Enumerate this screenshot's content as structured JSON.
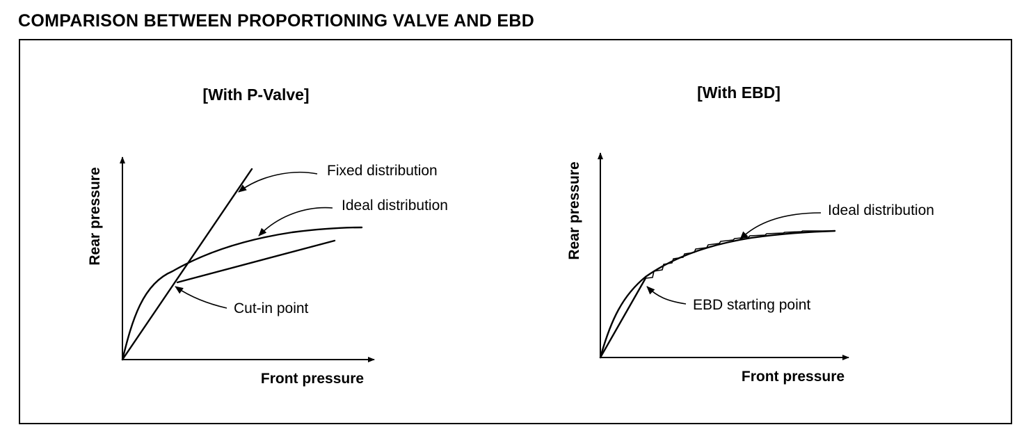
{
  "title": "COMPARISON BETWEEN PROPORTIONING VALVE AND EBD",
  "panels": [
    {
      "title": "[With P-Valve]",
      "xlabel": "Front pressure",
      "ylabel": "Rear pressure",
      "callouts": {
        "fixed": "Fixed distribution",
        "ideal": "Ideal distribution",
        "cutin": "Cut-in point"
      }
    },
    {
      "title": "[With EBD]",
      "xlabel": "Front pressure",
      "ylabel": "Rear pressure",
      "callouts": {
        "ideal": "Ideal distribution",
        "start": "EBD starting point"
      }
    }
  ]
}
